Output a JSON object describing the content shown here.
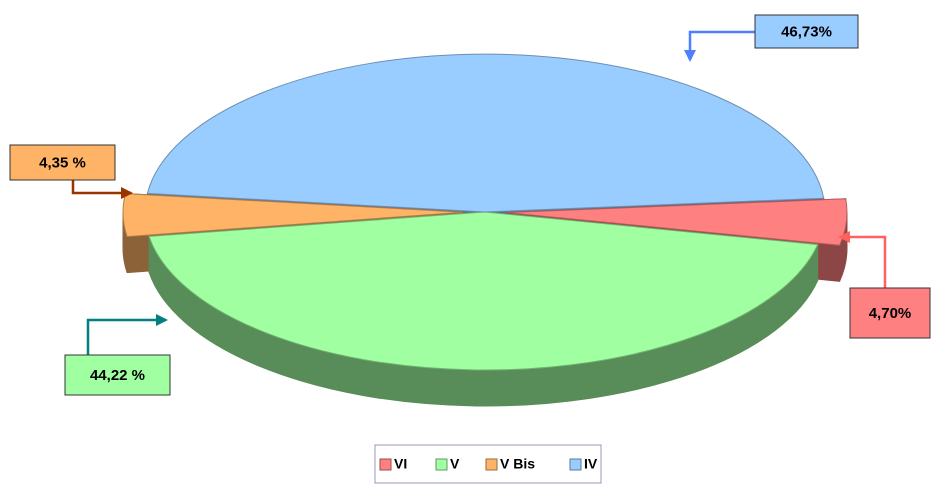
{
  "chart_data": {
    "type": "pie",
    "categories": [
      "VI",
      "V",
      "V Bis",
      "IV"
    ],
    "values": [
      4.7,
      44.22,
      4.35,
      46.73
    ],
    "value_labels": [
      "4,70%",
      "44,22 %",
      "4,35 %",
      "46,73%"
    ],
    "colors": [
      "#ff8080",
      "#a0ffa0",
      "#ffb366",
      "#99ccff"
    ],
    "legend": "bottom"
  }
}
